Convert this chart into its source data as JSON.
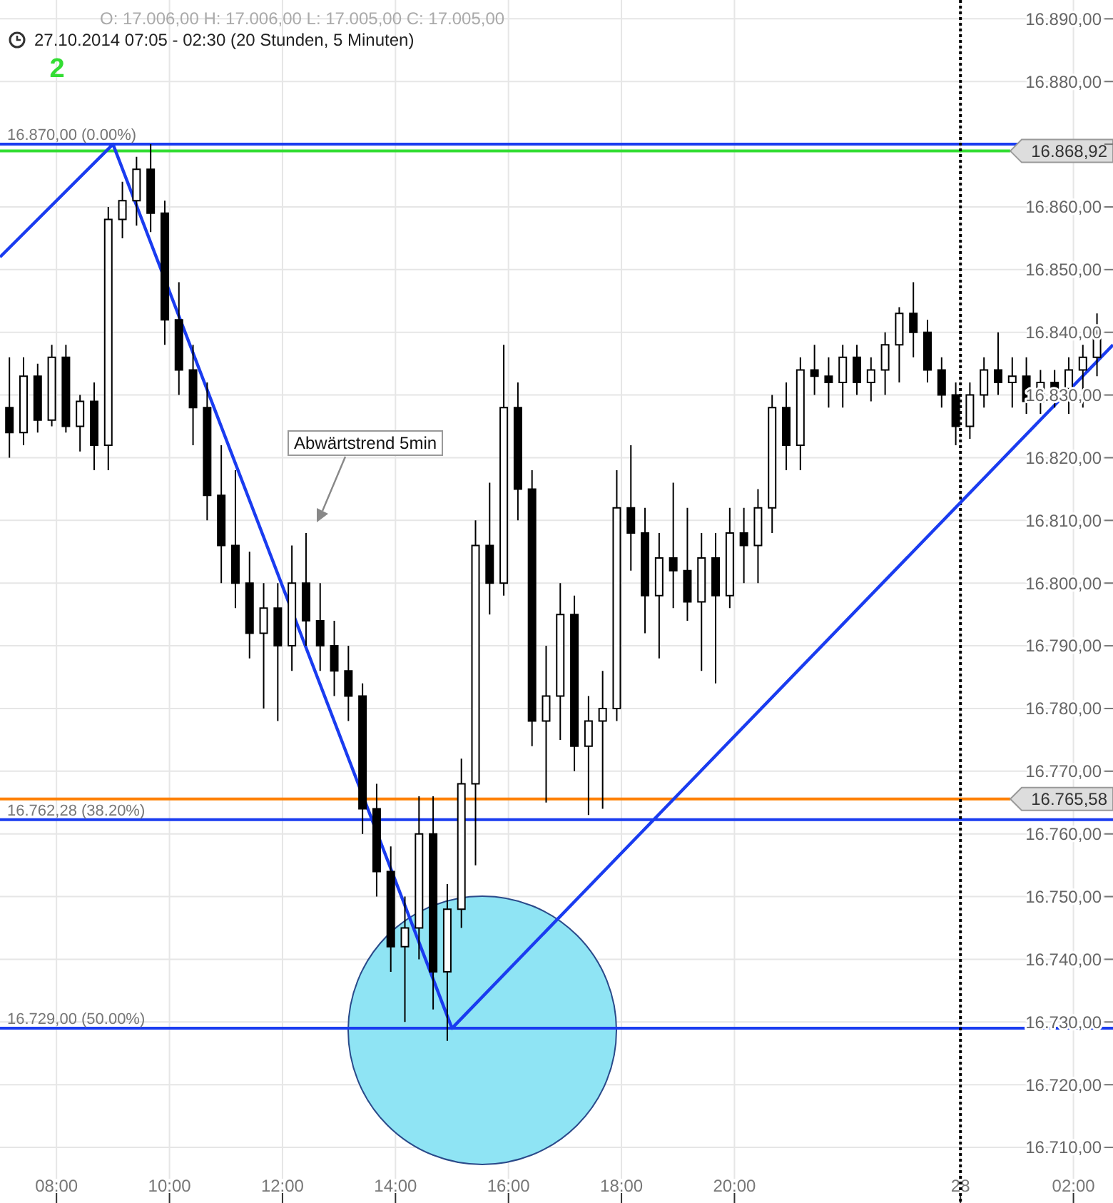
{
  "chart_data": {
    "type": "candlestick",
    "title": "O: 17.006,00 H: 17.006,00 L: 17.005,00 C: 17.005,00",
    "subtitle": "27.10.2014 07:05 - 02:30 (20 Stunden, 5 Minuten)",
    "annotations": [
      "2",
      "Abwärtstrend 5min"
    ],
    "x": [
      "2014-10-27T07:10",
      "2014-10-27T07:25",
      "2014-10-27T07:40",
      "2014-10-27T07:55",
      "2014-10-27T08:10",
      "2014-10-27T08:25",
      "2014-10-27T08:40",
      "2014-10-27T08:55",
      "2014-10-27T09:10",
      "2014-10-27T09:25",
      "2014-10-27T09:40",
      "2014-10-27T09:55",
      "2014-10-27T10:10",
      "2014-10-27T10:25",
      "2014-10-27T10:40",
      "2014-10-27T10:55",
      "2014-10-27T11:10",
      "2014-10-27T11:25",
      "2014-10-27T11:40",
      "2014-10-27T11:55",
      "2014-10-27T12:10",
      "2014-10-27T12:25",
      "2014-10-27T12:40",
      "2014-10-27T12:55",
      "2014-10-27T13:10",
      "2014-10-27T13:25",
      "2014-10-27T13:40",
      "2014-10-27T13:55",
      "2014-10-27T14:10",
      "2014-10-27T14:25",
      "2014-10-27T14:40",
      "2014-10-27T14:55",
      "2014-10-27T15:10",
      "2014-10-27T15:25",
      "2014-10-27T15:40",
      "2014-10-27T15:55",
      "2014-10-27T16:10",
      "2014-10-27T16:25",
      "2014-10-27T16:40",
      "2014-10-27T16:55",
      "2014-10-27T17:10",
      "2014-10-27T17:25",
      "2014-10-27T17:40",
      "2014-10-27T17:55",
      "2014-10-27T18:10",
      "2014-10-27T18:25",
      "2014-10-27T18:40",
      "2014-10-27T18:55",
      "2014-10-27T19:10",
      "2014-10-27T19:25",
      "2014-10-27T19:40",
      "2014-10-27T19:55",
      "2014-10-27T20:10",
      "2014-10-27T20:25",
      "2014-10-27T20:40",
      "2014-10-27T20:55",
      "2014-10-27T21:10",
      "2014-10-27T21:25",
      "2014-10-27T21:40",
      "2014-10-27T21:55",
      "2014-10-27T22:10",
      "2014-10-27T22:25",
      "2014-10-27T22:40",
      "2014-10-27T22:55",
      "2014-10-27T23:10",
      "2014-10-27T23:25",
      "2014-10-27T23:40",
      "2014-10-27T23:55",
      "2014-10-28T00:10",
      "2014-10-28T00:25",
      "2014-10-28T00:40",
      "2014-10-28T00:55",
      "2014-10-28T01:10",
      "2014-10-28T01:25",
      "2014-10-28T01:40",
      "2014-10-28T01:55",
      "2014-10-28T02:10",
      "2014-10-28T02:25"
    ],
    "ohlc": [
      [
        16828,
        16836,
        16820,
        16824
      ],
      [
        16824,
        16836,
        16822,
        16833
      ],
      [
        16833,
        16835,
        16824,
        16826
      ],
      [
        16826,
        16838,
        16825,
        16836
      ],
      [
        16836,
        16838,
        16824,
        16825
      ],
      [
        16825,
        16830,
        16821,
        16829
      ],
      [
        16829,
        16832,
        16818,
        16822
      ],
      [
        16822,
        16860,
        16818,
        16858
      ],
      [
        16858,
        16864,
        16855,
        16861
      ],
      [
        16861,
        16868,
        16857,
        16866
      ],
      [
        16866,
        16870,
        16856,
        16859
      ],
      [
        16859,
        16861,
        16838,
        16842
      ],
      [
        16842,
        16848,
        16830,
        16834
      ],
      [
        16834,
        16838,
        16822,
        16828
      ],
      [
        16828,
        16832,
        16810,
        16814
      ],
      [
        16814,
        16822,
        16800,
        16806
      ],
      [
        16806,
        16818,
        16796,
        16800
      ],
      [
        16800,
        16805,
        16788,
        16792
      ],
      [
        16792,
        16800,
        16780,
        16796
      ],
      [
        16796,
        16800,
        16778,
        16790
      ],
      [
        16790,
        16806,
        16786,
        16800
      ],
      [
        16800,
        16808,
        16790,
        16794
      ],
      [
        16794,
        16800,
        16786,
        16790
      ],
      [
        16790,
        16794,
        16782,
        16786
      ],
      [
        16786,
        16790,
        16778,
        16782
      ],
      [
        16782,
        16784,
        16760,
        16764
      ],
      [
        16764,
        16768,
        16750,
        16754
      ],
      [
        16754,
        16758,
        16738,
        16742
      ],
      [
        16742,
        16750,
        16730,
        16745
      ],
      [
        16745,
        16766,
        16740,
        16760
      ],
      [
        16760,
        16766,
        16732,
        16738
      ],
      [
        16738,
        16752,
        16727,
        16748
      ],
      [
        16748,
        16772,
        16745,
        16768
      ],
      [
        16768,
        16810,
        16755,
        16806
      ],
      [
        16806,
        16816,
        16795,
        16800
      ],
      [
        16800,
        16838,
        16798,
        16828
      ],
      [
        16828,
        16832,
        16810,
        16815
      ],
      [
        16815,
        16818,
        16774,
        16778
      ],
      [
        16778,
        16790,
        16765,
        16782
      ],
      [
        16782,
        16800,
        16775,
        16795
      ],
      [
        16795,
        16798,
        16770,
        16774
      ],
      [
        16774,
        16782,
        16763,
        16778
      ],
      [
        16778,
        16786,
        16764,
        16780
      ],
      [
        16780,
        16818,
        16778,
        16812
      ],
      [
        16812,
        16822,
        16802,
        16808
      ],
      [
        16808,
        16812,
        16792,
        16798
      ],
      [
        16798,
        16808,
        16788,
        16804
      ],
      [
        16804,
        16816,
        16796,
        16802
      ],
      [
        16802,
        16812,
        16794,
        16797
      ],
      [
        16797,
        16808,
        16786,
        16804
      ],
      [
        16804,
        16808,
        16784,
        16798
      ],
      [
        16798,
        16812,
        16796,
        16808
      ],
      [
        16808,
        16812,
        16800,
        16806
      ],
      [
        16806,
        16815,
        16800,
        16812
      ],
      [
        16812,
        16830,
        16808,
        16828
      ],
      [
        16828,
        16832,
        16818,
        16822
      ],
      [
        16822,
        16836,
        16818,
        16834
      ],
      [
        16834,
        16838,
        16830,
        16833
      ],
      [
        16833,
        16836,
        16828,
        16832
      ],
      [
        16832,
        16838,
        16828,
        16836
      ],
      [
        16836,
        16838,
        16830,
        16832
      ],
      [
        16832,
        16836,
        16829,
        16834
      ],
      [
        16834,
        16840,
        16830,
        16838
      ],
      [
        16838,
        16844,
        16832,
        16843
      ],
      [
        16843,
        16848,
        16836,
        16840
      ],
      [
        16840,
        16842,
        16832,
        16834
      ],
      [
        16834,
        16836,
        16828,
        16830
      ],
      [
        16830,
        16832,
        16822,
        16825
      ],
      [
        16825,
        16832,
        16823,
        16830
      ],
      [
        16830,
        16836,
        16828,
        16834
      ],
      [
        16834,
        16840,
        16830,
        16832
      ],
      [
        16832,
        16836,
        16828,
        16833
      ],
      [
        16833,
        16836,
        16827,
        16829
      ],
      [
        16829,
        16834,
        16827,
        16832
      ],
      [
        16832,
        16834,
        16828,
        16831
      ],
      [
        16831,
        16836,
        16827,
        16834
      ],
      [
        16834,
        16838,
        16828,
        16836
      ],
      [
        16836,
        16843,
        16833,
        16839
      ]
    ],
    "series": [
      {
        "type": "line",
        "color": "#1a3cf0",
        "x": [
          "2014-10-27T07:00",
          "2014-10-27T09:00",
          "2014-10-27T15:00",
          "2014-10-28T02:42"
        ],
        "values": [
          16852,
          16870,
          16729,
          16838
        ]
      }
    ],
    "xlim": [
      "2014-10-27T07:00",
      "2014-10-28T02:42"
    ],
    "xticks": [
      {
        "value": "2014-10-27T08:00",
        "label": "08:00"
      },
      {
        "value": "2014-10-27T10:00",
        "label": "10:00"
      },
      {
        "value": "2014-10-27T12:00",
        "label": "12:00"
      },
      {
        "value": "2014-10-27T14:00",
        "label": "14:00"
      },
      {
        "value": "2014-10-27T16:00",
        "label": "16:00"
      },
      {
        "value": "2014-10-27T18:00",
        "label": "18:00"
      },
      {
        "value": "2014-10-27T20:00",
        "label": "20:00"
      },
      {
        "value": "2014-10-28T00:00",
        "label": "28"
      },
      {
        "value": "2014-10-28T02:00",
        "label": "02:00"
      }
    ],
    "ylim": [
      16705,
      16893
    ],
    "yticks": [
      {
        "value": 16710,
        "label": "16.710,00"
      },
      {
        "value": 16720,
        "label": "16.720,00"
      },
      {
        "value": 16730,
        "label": "16.730,00"
      },
      {
        "value": 16740,
        "label": "16.740,00"
      },
      {
        "value": 16750,
        "label": "16.750,00"
      },
      {
        "value": 16760,
        "label": "16.760,00"
      },
      {
        "value": 16770,
        "label": "16.770,00"
      },
      {
        "value": 16780,
        "label": "16.780,00"
      },
      {
        "value": 16790,
        "label": "16.790,00"
      },
      {
        "value": 16800,
        "label": "16.800,00"
      },
      {
        "value": 16810,
        "label": "16.810,00"
      },
      {
        "value": 16820,
        "label": "16.820,00"
      },
      {
        "value": 16830,
        "label": "16.830,00"
      },
      {
        "value": 16840,
        "label": "16.840,00"
      },
      {
        "value": 16850,
        "label": "16.850,00"
      },
      {
        "value": 16860,
        "label": "16.860,00"
      },
      {
        "value": 16870,
        "label": null
      },
      {
        "value": 16880,
        "label": "16.880,00"
      },
      {
        "value": 16890,
        "label": "16.890,00"
      }
    ],
    "ref_lines": [
      {
        "axis": "y",
        "value": 16870,
        "label": "16.870,00 (0.00%)",
        "color": "#1a3cf0"
      },
      {
        "axis": "y",
        "value": 16762.28,
        "label": "16.762,28 (38.20%)",
        "color": "#1a3cf0"
      },
      {
        "axis": "y",
        "value": 16729,
        "label": "16.729,00 (50.00%)",
        "color": "#1a3cf0"
      },
      {
        "axis": "y",
        "value": 16868.92,
        "label": "16.868,92",
        "color": "#33dd33"
      },
      {
        "axis": "y",
        "value": 16765.58,
        "label": "16.765,58",
        "color": "#ff8000"
      },
      {
        "axis": "x",
        "value": "2014-10-28T00:00",
        "color": "#000000",
        "line_style": "dotted"
      }
    ],
    "grid": true
  }
}
